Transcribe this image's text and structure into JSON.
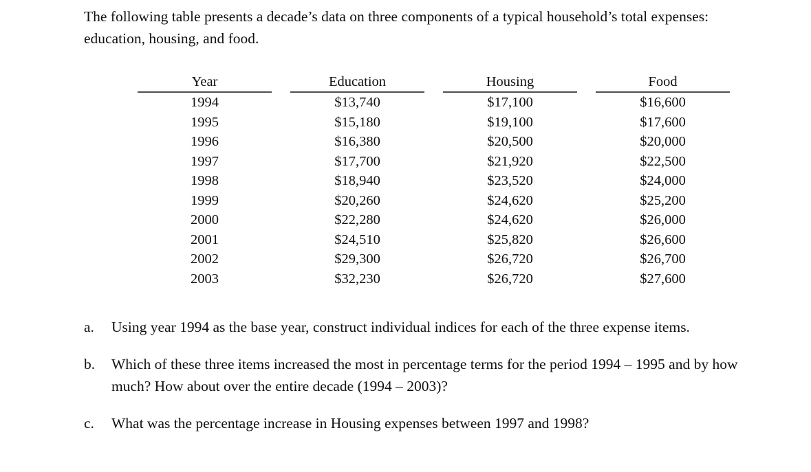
{
  "intro": "The following table presents a decade’s data on three components of a typical household’s total expenses: education, housing, and food.",
  "table": {
    "columns": [
      "Year",
      "Education",
      "Housing",
      "Food"
    ],
    "rows": [
      [
        "1994",
        "$13,740",
        "$17,100",
        "$16,600"
      ],
      [
        "1995",
        "$15,180",
        "$19,100",
        "$17,600"
      ],
      [
        "1996",
        "$16,380",
        "$20,500",
        "$20,000"
      ],
      [
        "1997",
        "$17,700",
        "$21,920",
        "$22,500"
      ],
      [
        "1998",
        "$18,940",
        "$23,520",
        "$24,000"
      ],
      [
        "1999",
        "$20,260",
        "$24,620",
        "$25,200"
      ],
      [
        "2000",
        "$22,280",
        "$24,620",
        "$26,000"
      ],
      [
        "2001",
        "$24,510",
        "$25,820",
        "$26,600"
      ],
      [
        "2002",
        "$29,300",
        "$26,720",
        "$26,700"
      ],
      [
        "2003",
        "$32,230",
        "$26,720",
        "$27,600"
      ]
    ]
  },
  "questions": [
    {
      "label": "a.",
      "text": "Using year 1994 as the base year, construct individual indices for each of the three expense items."
    },
    {
      "label": "b.",
      "text": "Which of these three items increased the most in percentage terms for the period 1994 – 1995 and by how much? How about over the entire decade (1994 – 2003)?"
    },
    {
      "label": "c.",
      "text": "What was the percentage increase in Housing expenses between 1997 and 1998?"
    }
  ],
  "colors": {
    "text": "#111111",
    "rule": "#4f4f4f",
    "background": "#ffffff"
  }
}
